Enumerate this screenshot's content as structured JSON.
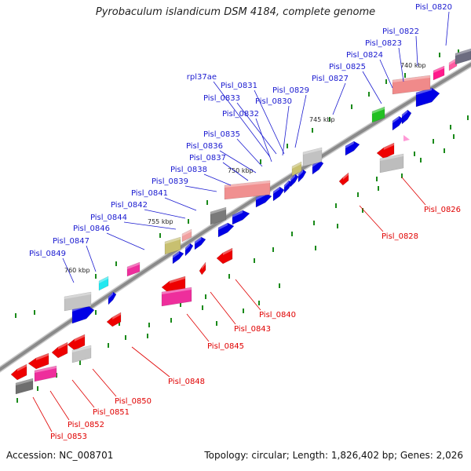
{
  "title": "Pyrobaculum islandicum DSM 4184, complete genome",
  "accession": "Accession: NC_008701",
  "summary": "Topology: circular; Length: 1,826,402 bp; Genes: 2,026",
  "tick_labels": [
    "740 kbp",
    "745 kbp",
    "750 kbp",
    "755 kbp",
    "760 kbp"
  ],
  "forward_genes": [
    "Pisl_0820",
    "Pisl_0822",
    "Pisl_0823",
    "Pisl_0824",
    "Pisl_0825",
    "Pisl_0827",
    "Pisl_0829",
    "Pisl_0830",
    "rpl37ae",
    "Pisl_0831",
    "Pisl_0833",
    "Pisl_0832",
    "Pisl_0835",
    "Pisl_0836",
    "Pisl_0837",
    "Pisl_0838",
    "Pisl_0839",
    "Pisl_0841",
    "Pisl_0842",
    "Pisl_0844",
    "Pisl_0846",
    "Pisl_0847",
    "Pisl_0849"
  ],
  "reverse_genes": [
    "Pisl_0826",
    "Pisl_0828",
    "Pisl_0840",
    "Pisl_0843",
    "Pisl_0845",
    "Pisl_0848",
    "Pisl_0850",
    "Pisl_0851",
    "Pisl_0852",
    "Pisl_0853"
  ],
  "colors": {
    "forward_label": "#1a1ad0",
    "reverse_label": "#e00000",
    "cds_forward": "#0000e6",
    "cds_reverse": "#ee0000",
    "backbone": "#8a8a8a",
    "tick": "#1a8a1a"
  }
}
